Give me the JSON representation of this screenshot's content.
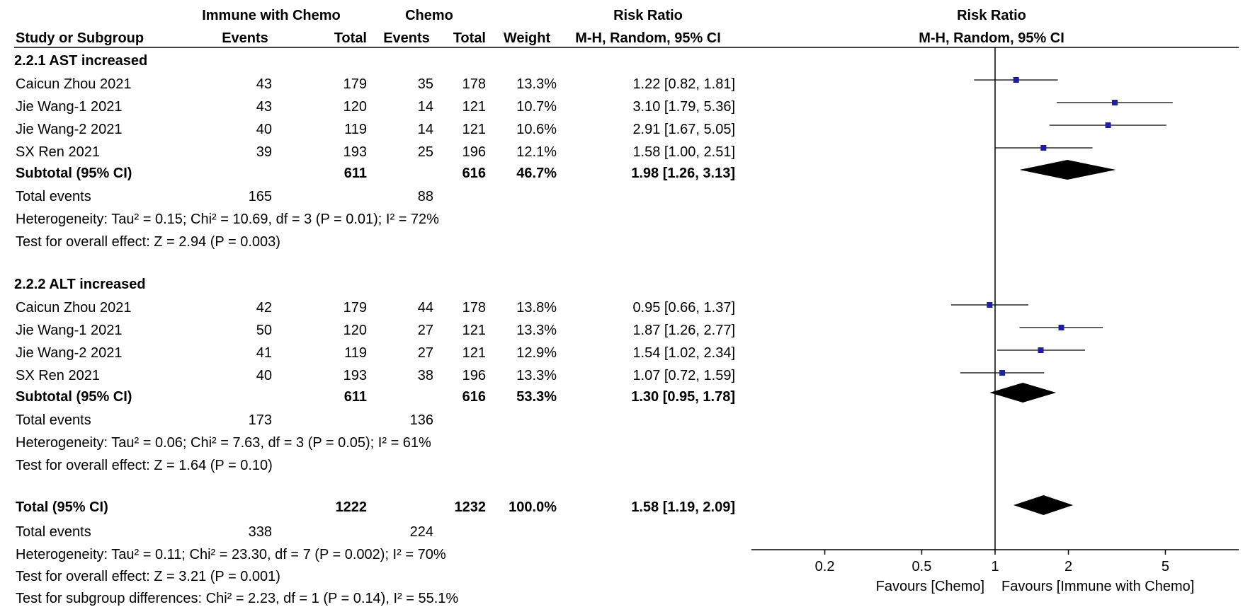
{
  "header": {
    "group1": "Immune with Chemo",
    "group2": "Chemo",
    "rr_title": "Risk Ratio",
    "rr_method": "M-H, Random, 95% CI",
    "plot_title": "Risk Ratio",
    "plot_method": "M-H, Random, 95% CI",
    "study_col": "Study or Subgroup",
    "events": "Events",
    "total": "Total",
    "weight": "Weight"
  },
  "sub1": {
    "title": "2.2.1 AST increased",
    "rows": [
      {
        "study": "Caicun Zhou 2021",
        "e1": "43",
        "t1": "179",
        "e2": "35",
        "t2": "178",
        "w": "13.3%",
        "ci": "1.22 [0.82, 1.81]"
      },
      {
        "study": "Jie Wang-1 2021",
        "e1": "43",
        "t1": "120",
        "e2": "14",
        "t2": "121",
        "w": "10.7%",
        "ci": "3.10 [1.79, 5.36]"
      },
      {
        "study": "Jie Wang-2 2021",
        "e1": "40",
        "t1": "119",
        "e2": "14",
        "t2": "121",
        "w": "10.6%",
        "ci": "2.91 [1.67, 5.05]"
      },
      {
        "study": "SX Ren 2021",
        "e1": "39",
        "t1": "193",
        "e2": "25",
        "t2": "196",
        "w": "12.1%",
        "ci": "1.58 [1.00, 2.51]"
      }
    ],
    "subtotal": {
      "label": "Subtotal (95% CI)",
      "t1": "611",
      "t2": "616",
      "w": "46.7%",
      "ci": "1.98 [1.26, 3.13]"
    },
    "events": {
      "label": "Total events",
      "e1": "165",
      "e2": "88"
    },
    "het": "Heterogeneity: Tau² = 0.15; Chi² = 10.69, df = 3 (P = 0.01); I² = 72%",
    "effect": "Test for overall effect: Z = 2.94 (P = 0.003)"
  },
  "sub2": {
    "title": "2.2.2 ALT increased",
    "rows": [
      {
        "study": "Caicun Zhou 2021",
        "e1": "42",
        "t1": "179",
        "e2": "44",
        "t2": "178",
        "w": "13.8%",
        "ci": "0.95 [0.66, 1.37]"
      },
      {
        "study": "Jie Wang-1 2021",
        "e1": "50",
        "t1": "120",
        "e2": "27",
        "t2": "121",
        "w": "13.3%",
        "ci": "1.87 [1.26, 2.77]"
      },
      {
        "study": "Jie Wang-2 2021",
        "e1": "41",
        "t1": "119",
        "e2": "27",
        "t2": "121",
        "w": "12.9%",
        "ci": "1.54 [1.02, 2.34]"
      },
      {
        "study": "SX Ren 2021",
        "e1": "40",
        "t1": "193",
        "e2": "38",
        "t2": "196",
        "w": "13.3%",
        "ci": "1.07 [0.72, 1.59]"
      }
    ],
    "subtotal": {
      "label": "Subtotal (95% CI)",
      "t1": "611",
      "t2": "616",
      "w": "53.3%",
      "ci": "1.30 [0.95, 1.78]"
    },
    "events": {
      "label": "Total events",
      "e1": "173",
      "e2": "136"
    },
    "het": "Heterogeneity: Tau² = 0.06; Chi² = 7.63, df = 3 (P = 0.05); I² = 61%",
    "effect": "Test for overall effect: Z = 1.64 (P = 0.10)"
  },
  "overall": {
    "label": "Total (95% CI)",
    "t1": "1222",
    "t2": "1232",
    "w": "100.0%",
    "ci": "1.58 [1.19, 2.09]",
    "events": {
      "label": "Total events",
      "e1": "338",
      "e2": "224"
    },
    "het": "Heterogeneity: Tau² = 0.11; Chi² = 23.30, df = 7 (P = 0.002); I² = 70%",
    "effect": "Test for overall effect: Z = 3.21 (P = 0.001)",
    "subgroup": "Test for subgroup differences: Chi² = 2.23, df = 1 (P = 0.14), I² = 55.1%"
  },
  "axis": {
    "ticks": [
      0.2,
      0.5,
      1,
      2,
      5
    ],
    "tick_labels": [
      "0.2",
      "0.5",
      "1",
      "2",
      "5"
    ],
    "favours_left": "Favours [Chemo]",
    "favours_right": "Favours [Immune with Chemo]"
  },
  "chart_data": {
    "type": "forest",
    "title": "Risk Ratio",
    "xlabel": "M-H, Random, 95% CI",
    "x_scale": "log",
    "xlim": [
      0.1,
      10
    ],
    "reference_line": 1,
    "colors": {
      "study_marker": "#1f1fa0",
      "diamond": "#000000"
    },
    "studies": [
      {
        "subgroup": "2.2.1 AST increased",
        "name": "Caicun Zhou 2021",
        "rr": 1.22,
        "lo": 0.82,
        "hi": 1.81,
        "weight": 13.3
      },
      {
        "subgroup": "2.2.1 AST increased",
        "name": "Jie Wang-1 2021",
        "rr": 3.1,
        "lo": 1.79,
        "hi": 5.36,
        "weight": 10.7
      },
      {
        "subgroup": "2.2.1 AST increased",
        "name": "Jie Wang-2 2021",
        "rr": 2.91,
        "lo": 1.67,
        "hi": 5.05,
        "weight": 10.6
      },
      {
        "subgroup": "2.2.1 AST increased",
        "name": "SX Ren 2021",
        "rr": 1.58,
        "lo": 1.0,
        "hi": 2.51,
        "weight": 12.1
      },
      {
        "subgroup": "2.2.2 ALT increased",
        "name": "Caicun Zhou 2021",
        "rr": 0.95,
        "lo": 0.66,
        "hi": 1.37,
        "weight": 13.8
      },
      {
        "subgroup": "2.2.2 ALT increased",
        "name": "Jie Wang-1 2021",
        "rr": 1.87,
        "lo": 1.26,
        "hi": 2.77,
        "weight": 13.3
      },
      {
        "subgroup": "2.2.2 ALT increased",
        "name": "Jie Wang-2 2021",
        "rr": 1.54,
        "lo": 1.02,
        "hi": 2.34,
        "weight": 12.9
      },
      {
        "subgroup": "2.2.2 ALT increased",
        "name": "SX Ren 2021",
        "rr": 1.07,
        "lo": 0.72,
        "hi": 1.59,
        "weight": 13.3
      }
    ],
    "pooled": [
      {
        "name": "Subtotal AST increased",
        "rr": 1.98,
        "lo": 1.26,
        "hi": 3.13
      },
      {
        "name": "Subtotal ALT increased",
        "rr": 1.3,
        "lo": 0.95,
        "hi": 1.78
      },
      {
        "name": "Total",
        "rr": 1.58,
        "lo": 1.19,
        "hi": 2.09
      }
    ]
  }
}
